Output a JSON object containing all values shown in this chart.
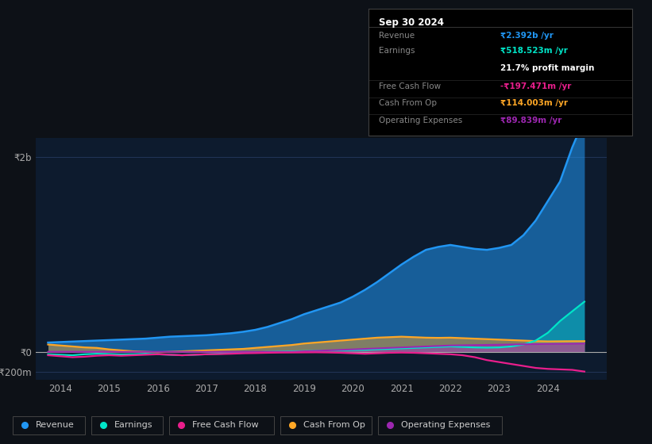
{
  "bg_color": "#0d1117",
  "plot_bg_color": "#0d1b2e",
  "grid_color": "#253a5e",
  "text_color": "#aaaaaa",
  "ytick_labels": [
    "-₹200m",
    "₹0",
    "₹2b"
  ],
  "ytick_values": [
    -200,
    0,
    2000
  ],
  "xlabel_years": [
    "2014",
    "2015",
    "2016",
    "2017",
    "2018",
    "2019",
    "2020",
    "2021",
    "2022",
    "2023",
    "2024"
  ],
  "xlim": [
    2013.5,
    2025.2
  ],
  "ylim": [
    -280,
    2200
  ],
  "series_colors": {
    "Revenue": "#2196f3",
    "Earnings": "#00e5c8",
    "Free Cash Flow": "#e91e8c",
    "Cash From Op": "#ffa726",
    "Operating Expenses": "#9c27b0"
  },
  "x_data": [
    2013.75,
    2014.0,
    2014.25,
    2014.5,
    2014.75,
    2015.0,
    2015.25,
    2015.5,
    2015.75,
    2016.0,
    2016.25,
    2016.5,
    2016.75,
    2017.0,
    2017.25,
    2017.5,
    2017.75,
    2018.0,
    2018.25,
    2018.5,
    2018.75,
    2019.0,
    2019.25,
    2019.5,
    2019.75,
    2020.0,
    2020.25,
    2020.5,
    2020.75,
    2021.0,
    2021.25,
    2021.5,
    2021.75,
    2022.0,
    2022.25,
    2022.5,
    2022.75,
    2023.0,
    2023.25,
    2023.5,
    2023.75,
    2024.0,
    2024.25,
    2024.5,
    2024.75
  ],
  "revenue": [
    100,
    105,
    110,
    115,
    120,
    125,
    130,
    135,
    140,
    150,
    160,
    165,
    170,
    175,
    185,
    195,
    210,
    230,
    260,
    300,
    340,
    390,
    430,
    470,
    510,
    570,
    640,
    720,
    810,
    900,
    980,
    1050,
    1080,
    1100,
    1080,
    1060,
    1050,
    1070,
    1100,
    1200,
    1350,
    1550,
    1750,
    2100,
    2392
  ],
  "earnings": [
    -20,
    -25,
    -30,
    -20,
    -15,
    -18,
    -22,
    -20,
    -15,
    -20,
    -25,
    -30,
    -25,
    -20,
    -15,
    -10,
    -5,
    0,
    5,
    8,
    10,
    12,
    15,
    18,
    20,
    22,
    25,
    30,
    35,
    40,
    45,
    50,
    55,
    60,
    55,
    50,
    48,
    50,
    60,
    80,
    120,
    200,
    320,
    420,
    518.523
  ],
  "free_cash_flow": [
    -30,
    -40,
    -50,
    -45,
    -35,
    -30,
    -35,
    -30,
    -25,
    -20,
    -25,
    -30,
    -25,
    -20,
    -18,
    -15,
    -10,
    -8,
    -5,
    -3,
    -2,
    -1,
    0,
    -2,
    -5,
    -10,
    -15,
    -10,
    -5,
    -3,
    -5,
    -10,
    -15,
    -20,
    -30,
    -50,
    -80,
    -100,
    -120,
    -140,
    -160,
    -170,
    -175,
    -180,
    -197.471
  ],
  "cash_from_op": [
    80,
    70,
    60,
    50,
    45,
    30,
    20,
    10,
    5,
    0,
    5,
    10,
    15,
    20,
    25,
    30,
    35,
    45,
    55,
    65,
    75,
    90,
    100,
    110,
    120,
    130,
    140,
    150,
    155,
    160,
    155,
    150,
    148,
    150,
    145,
    140,
    135,
    130,
    125,
    120,
    115,
    112,
    113,
    114,
    114.003
  ],
  "operating_expenses": [
    5,
    5,
    5,
    5,
    5,
    5,
    5,
    5,
    5,
    5,
    5,
    5,
    5,
    5,
    5,
    5,
    5,
    5,
    5,
    5,
    5,
    10,
    15,
    20,
    25,
    30,
    35,
    40,
    45,
    50,
    55,
    60,
    65,
    70,
    72,
    74,
    76,
    78,
    80,
    82,
    84,
    86,
    87,
    88,
    89.839
  ],
  "infobox": {
    "date": "Sep 30 2024",
    "rows": [
      {
        "label": "Revenue",
        "value": "₹2.392b /yr",
        "value_color": "#2196f3",
        "bold": true,
        "separator_after": false
      },
      {
        "label": "Earnings",
        "value": "₹518.523m /yr",
        "value_color": "#00e5c8",
        "bold": true,
        "separator_after": false
      },
      {
        "label": "",
        "value": "21.7% profit margin",
        "value_color": "#ffffff",
        "bold": true,
        "separator_after": true
      },
      {
        "label": "Free Cash Flow",
        "value": "-₹197.471m /yr",
        "value_color": "#e91e8c",
        "bold": true,
        "separator_after": true
      },
      {
        "label": "Cash From Op",
        "value": "₹114.003m /yr",
        "value_color": "#ffa726",
        "bold": true,
        "separator_after": true
      },
      {
        "label": "Operating Expenses",
        "value": "₹89.839m /yr",
        "value_color": "#9c27b0",
        "bold": true,
        "separator_after": false
      }
    ]
  },
  "legend": [
    {
      "label": "Revenue",
      "color": "#2196f3"
    },
    {
      "label": "Earnings",
      "color": "#00e5c8"
    },
    {
      "label": "Free Cash Flow",
      "color": "#e91e8c"
    },
    {
      "label": "Cash From Op",
      "color": "#ffa726"
    },
    {
      "label": "Operating Expenses",
      "color": "#9c27b0"
    }
  ]
}
